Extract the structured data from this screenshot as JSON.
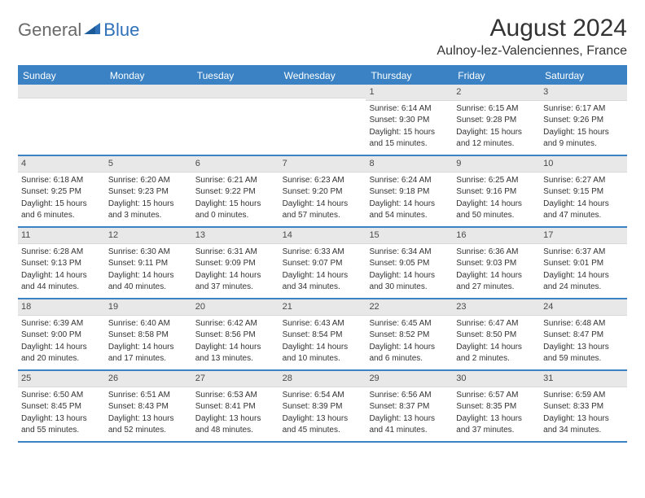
{
  "logo": {
    "general": "General",
    "blue": "Blue"
  },
  "title": "August 2024",
  "location": "Aulnoy-lez-Valenciennes, France",
  "colors": {
    "header_bg": "#3a82c4",
    "header_border": "#3a82c4",
    "day_num_bg": "#e8e8e8",
    "text": "#333333",
    "logo_gray": "#6a6a6a",
    "logo_blue": "#2f71b8"
  },
  "day_labels": [
    "Sunday",
    "Monday",
    "Tuesday",
    "Wednesday",
    "Thursday",
    "Friday",
    "Saturday"
  ],
  "weeks": [
    [
      null,
      null,
      null,
      null,
      {
        "n": "1",
        "sunrise": "Sunrise: 6:14 AM",
        "sunset": "Sunset: 9:30 PM",
        "day1": "Daylight: 15 hours",
        "day2": "and 15 minutes."
      },
      {
        "n": "2",
        "sunrise": "Sunrise: 6:15 AM",
        "sunset": "Sunset: 9:28 PM",
        "day1": "Daylight: 15 hours",
        "day2": "and 12 minutes."
      },
      {
        "n": "3",
        "sunrise": "Sunrise: 6:17 AM",
        "sunset": "Sunset: 9:26 PM",
        "day1": "Daylight: 15 hours",
        "day2": "and 9 minutes."
      }
    ],
    [
      {
        "n": "4",
        "sunrise": "Sunrise: 6:18 AM",
        "sunset": "Sunset: 9:25 PM",
        "day1": "Daylight: 15 hours",
        "day2": "and 6 minutes."
      },
      {
        "n": "5",
        "sunrise": "Sunrise: 6:20 AM",
        "sunset": "Sunset: 9:23 PM",
        "day1": "Daylight: 15 hours",
        "day2": "and 3 minutes."
      },
      {
        "n": "6",
        "sunrise": "Sunrise: 6:21 AM",
        "sunset": "Sunset: 9:22 PM",
        "day1": "Daylight: 15 hours",
        "day2": "and 0 minutes."
      },
      {
        "n": "7",
        "sunrise": "Sunrise: 6:23 AM",
        "sunset": "Sunset: 9:20 PM",
        "day1": "Daylight: 14 hours",
        "day2": "and 57 minutes."
      },
      {
        "n": "8",
        "sunrise": "Sunrise: 6:24 AM",
        "sunset": "Sunset: 9:18 PM",
        "day1": "Daylight: 14 hours",
        "day2": "and 54 minutes."
      },
      {
        "n": "9",
        "sunrise": "Sunrise: 6:25 AM",
        "sunset": "Sunset: 9:16 PM",
        "day1": "Daylight: 14 hours",
        "day2": "and 50 minutes."
      },
      {
        "n": "10",
        "sunrise": "Sunrise: 6:27 AM",
        "sunset": "Sunset: 9:15 PM",
        "day1": "Daylight: 14 hours",
        "day2": "and 47 minutes."
      }
    ],
    [
      {
        "n": "11",
        "sunrise": "Sunrise: 6:28 AM",
        "sunset": "Sunset: 9:13 PM",
        "day1": "Daylight: 14 hours",
        "day2": "and 44 minutes."
      },
      {
        "n": "12",
        "sunrise": "Sunrise: 6:30 AM",
        "sunset": "Sunset: 9:11 PM",
        "day1": "Daylight: 14 hours",
        "day2": "and 40 minutes."
      },
      {
        "n": "13",
        "sunrise": "Sunrise: 6:31 AM",
        "sunset": "Sunset: 9:09 PM",
        "day1": "Daylight: 14 hours",
        "day2": "and 37 minutes."
      },
      {
        "n": "14",
        "sunrise": "Sunrise: 6:33 AM",
        "sunset": "Sunset: 9:07 PM",
        "day1": "Daylight: 14 hours",
        "day2": "and 34 minutes."
      },
      {
        "n": "15",
        "sunrise": "Sunrise: 6:34 AM",
        "sunset": "Sunset: 9:05 PM",
        "day1": "Daylight: 14 hours",
        "day2": "and 30 minutes."
      },
      {
        "n": "16",
        "sunrise": "Sunrise: 6:36 AM",
        "sunset": "Sunset: 9:03 PM",
        "day1": "Daylight: 14 hours",
        "day2": "and 27 minutes."
      },
      {
        "n": "17",
        "sunrise": "Sunrise: 6:37 AM",
        "sunset": "Sunset: 9:01 PM",
        "day1": "Daylight: 14 hours",
        "day2": "and 24 minutes."
      }
    ],
    [
      {
        "n": "18",
        "sunrise": "Sunrise: 6:39 AM",
        "sunset": "Sunset: 9:00 PM",
        "day1": "Daylight: 14 hours",
        "day2": "and 20 minutes."
      },
      {
        "n": "19",
        "sunrise": "Sunrise: 6:40 AM",
        "sunset": "Sunset: 8:58 PM",
        "day1": "Daylight: 14 hours",
        "day2": "and 17 minutes."
      },
      {
        "n": "20",
        "sunrise": "Sunrise: 6:42 AM",
        "sunset": "Sunset: 8:56 PM",
        "day1": "Daylight: 14 hours",
        "day2": "and 13 minutes."
      },
      {
        "n": "21",
        "sunrise": "Sunrise: 6:43 AM",
        "sunset": "Sunset: 8:54 PM",
        "day1": "Daylight: 14 hours",
        "day2": "and 10 minutes."
      },
      {
        "n": "22",
        "sunrise": "Sunrise: 6:45 AM",
        "sunset": "Sunset: 8:52 PM",
        "day1": "Daylight: 14 hours",
        "day2": "and 6 minutes."
      },
      {
        "n": "23",
        "sunrise": "Sunrise: 6:47 AM",
        "sunset": "Sunset: 8:50 PM",
        "day1": "Daylight: 14 hours",
        "day2": "and 2 minutes."
      },
      {
        "n": "24",
        "sunrise": "Sunrise: 6:48 AM",
        "sunset": "Sunset: 8:47 PM",
        "day1": "Daylight: 13 hours",
        "day2": "and 59 minutes."
      }
    ],
    [
      {
        "n": "25",
        "sunrise": "Sunrise: 6:50 AM",
        "sunset": "Sunset: 8:45 PM",
        "day1": "Daylight: 13 hours",
        "day2": "and 55 minutes."
      },
      {
        "n": "26",
        "sunrise": "Sunrise: 6:51 AM",
        "sunset": "Sunset: 8:43 PM",
        "day1": "Daylight: 13 hours",
        "day2": "and 52 minutes."
      },
      {
        "n": "27",
        "sunrise": "Sunrise: 6:53 AM",
        "sunset": "Sunset: 8:41 PM",
        "day1": "Daylight: 13 hours",
        "day2": "and 48 minutes."
      },
      {
        "n": "28",
        "sunrise": "Sunrise: 6:54 AM",
        "sunset": "Sunset: 8:39 PM",
        "day1": "Daylight: 13 hours",
        "day2": "and 45 minutes."
      },
      {
        "n": "29",
        "sunrise": "Sunrise: 6:56 AM",
        "sunset": "Sunset: 8:37 PM",
        "day1": "Daylight: 13 hours",
        "day2": "and 41 minutes."
      },
      {
        "n": "30",
        "sunrise": "Sunrise: 6:57 AM",
        "sunset": "Sunset: 8:35 PM",
        "day1": "Daylight: 13 hours",
        "day2": "and 37 minutes."
      },
      {
        "n": "31",
        "sunrise": "Sunrise: 6:59 AM",
        "sunset": "Sunset: 8:33 PM",
        "day1": "Daylight: 13 hours",
        "day2": "and 34 minutes."
      }
    ]
  ]
}
